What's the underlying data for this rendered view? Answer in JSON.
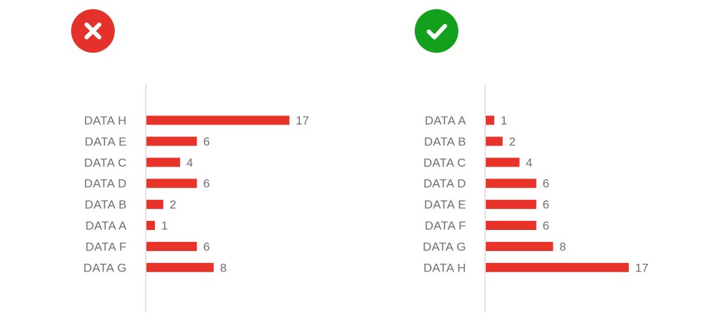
{
  "colors": {
    "bar": "#e8332a",
    "bad_badge": "#e4312b",
    "good_badge": "#13a01c",
    "axis": "#cfcfcf",
    "text": "#6f6f6f"
  },
  "badges": [
    {
      "kind": "bad",
      "icon": "x-mark-icon"
    },
    {
      "kind": "good",
      "icon": "checkmark-icon"
    }
  ],
  "chart_data": [
    {
      "type": "bar",
      "orientation": "horizontal",
      "categories": [
        "DATA H",
        "DATA E",
        "DATA C",
        "DATA D",
        "DATA B",
        "DATA A",
        "DATA F",
        "DATA G"
      ],
      "values": [
        17,
        6,
        4,
        6,
        2,
        1,
        6,
        8
      ],
      "value_labels": [
        "17",
        "6",
        "4",
        "6",
        "2",
        "1",
        "6",
        "8"
      ],
      "xlim": [
        0,
        17
      ],
      "grid": false
    },
    {
      "type": "bar",
      "orientation": "horizontal",
      "categories": [
        "DATA A",
        "DATA B",
        "DATA C",
        "DATA D",
        "DATA E",
        "DATA F",
        "DATA G",
        "DATA H"
      ],
      "values": [
        1,
        2,
        4,
        6,
        6,
        6,
        8,
        17
      ],
      "value_labels": [
        "1",
        "2",
        "4",
        "6",
        "6",
        "6",
        "8",
        "17"
      ],
      "xlim": [
        0,
        17
      ],
      "grid": false
    }
  ]
}
